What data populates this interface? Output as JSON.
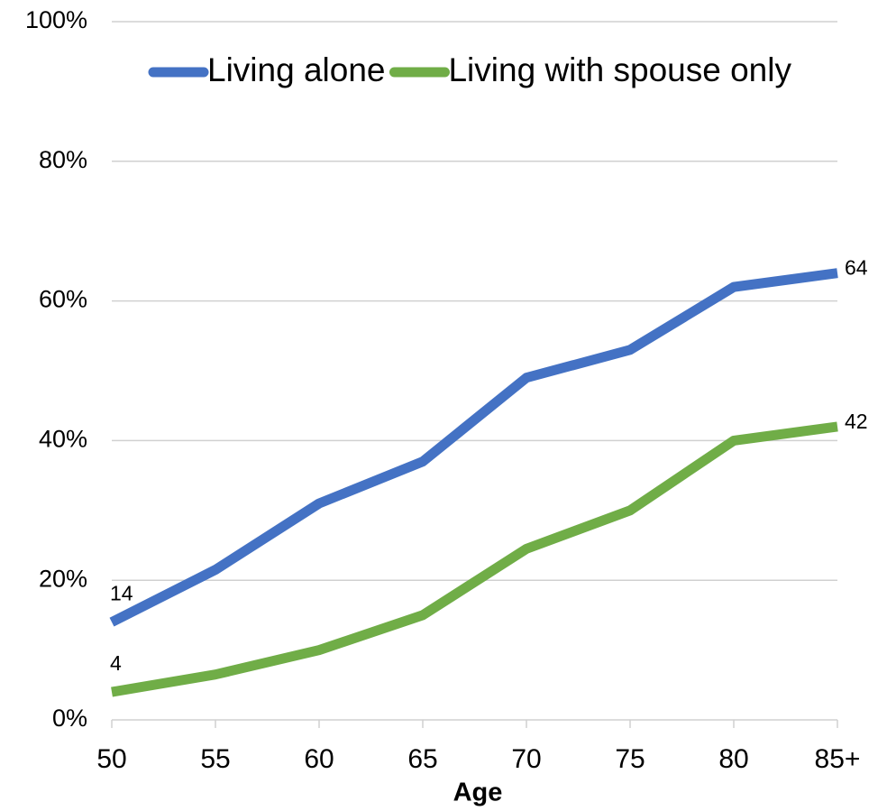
{
  "chart_data": {
    "type": "line",
    "x_label": "Age",
    "categories": [
      "50",
      "55",
      "60",
      "65",
      "70",
      "75",
      "80",
      "85+"
    ],
    "series": [
      {
        "name": "Living alone",
        "color": "#4472c4",
        "values": [
          14,
          21.5,
          31,
          37,
          49,
          53,
          62,
          64
        ]
      },
      {
        "name": "Living with spouse only",
        "color": "#70ad47",
        "values": [
          4,
          6.5,
          10,
          15,
          24.5,
          30,
          40,
          42
        ]
      }
    ],
    "ylim": [
      0,
      100
    ],
    "yticks": [
      {
        "value": 0,
        "label": "0%"
      },
      {
        "value": 20,
        "label": "20%"
      },
      {
        "value": 40,
        "label": "40%"
      },
      {
        "value": 60,
        "label": "60%"
      },
      {
        "value": 80,
        "label": "80%"
      },
      {
        "value": 100,
        "label": "100%"
      }
    ],
    "grid": true,
    "legend": "top"
  }
}
